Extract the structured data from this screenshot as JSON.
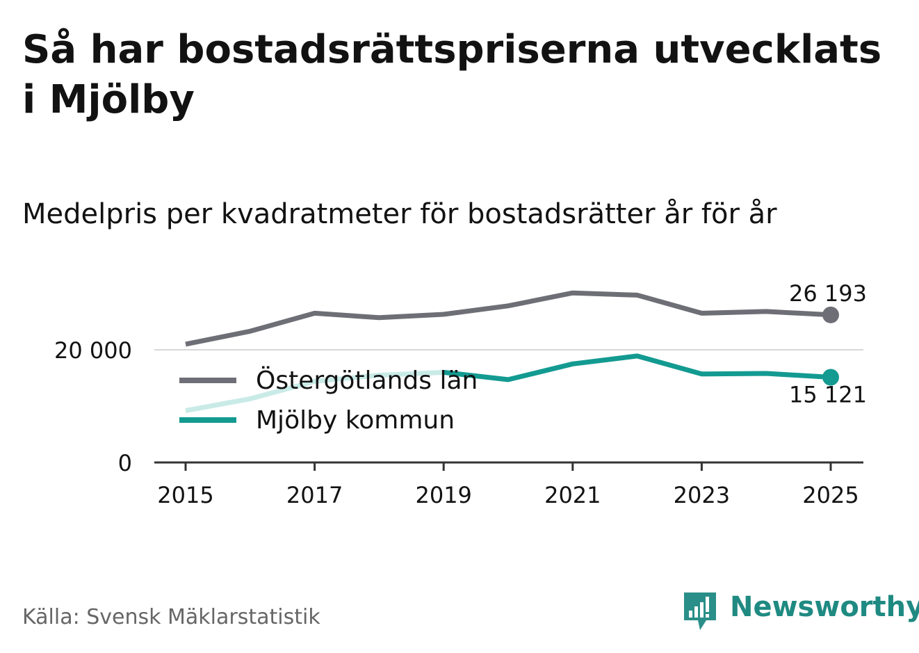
{
  "title": "Så har bostadsrättspriserna utvecklats i Mjölby",
  "subtitle": "Medelpris per kvadratmeter för bostadsrätter år för år",
  "source": "Källa: Svensk Mäklarstatistik",
  "brand": {
    "name": "Newsworthy",
    "icon": "newsworthy-logo-icon"
  },
  "colors": {
    "county": "#6e6e76",
    "municipality": "#139a91",
    "municipality_faded": "#c9ebe8",
    "gridline": "#d8d8d8",
    "axis": "#333333",
    "text": "#121212"
  },
  "chart_data": {
    "type": "line",
    "x": [
      2015,
      2016,
      2017,
      2018,
      2019,
      2020,
      2021,
      2022,
      2023,
      2024,
      2025
    ],
    "series": [
      {
        "name": "Östergötlands län",
        "values": [
          21000,
          23300,
          26500,
          25700,
          26300,
          27800,
          30100,
          29700,
          26500,
          26800,
          26193
        ],
        "end_label": "26 193"
      },
      {
        "name": "Mjölby kommun",
        "values": [
          9200,
          11300,
          14400,
          15500,
          16000,
          14700,
          17500,
          18900,
          15700,
          15800,
          15121
        ],
        "end_label": "15 121"
      }
    ],
    "ylim": [
      0,
      30000
    ],
    "yticks": [
      0,
      20000
    ],
    "ytick_labels": [
      "0",
      "20 000"
    ],
    "xticks": [
      2015,
      2017,
      2019,
      2021,
      2023,
      2025
    ],
    "xtick_labels": [
      "2015",
      "2017",
      "2019",
      "2021",
      "2023",
      "2025"
    ],
    "xlabel": "",
    "ylabel": "",
    "grid": true,
    "legend": "left, inside plot",
    "title": "Medelpris per kvadratmeter för bostadsrätter år för år"
  }
}
